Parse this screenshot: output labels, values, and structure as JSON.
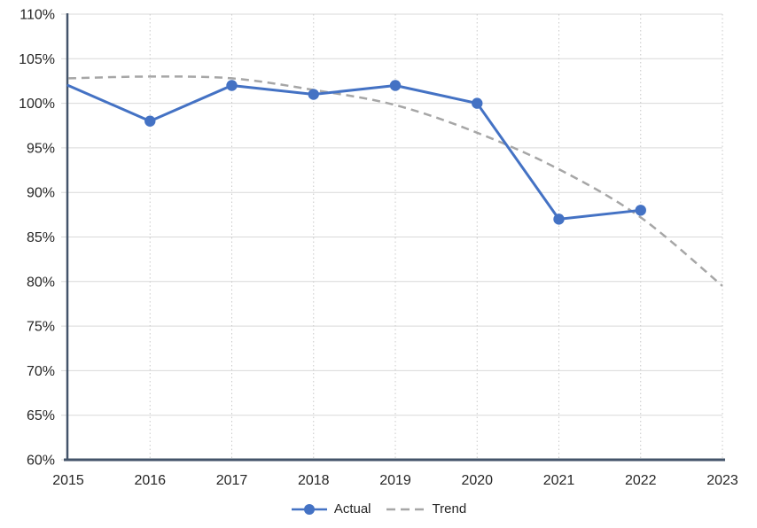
{
  "chart_data": {
    "type": "line",
    "title": "",
    "xlabel": "",
    "ylabel": "",
    "x": [
      2015,
      2016,
      2017,
      2018,
      2019,
      2020,
      2021,
      2022,
      2023
    ],
    "x_labels": [
      "2015",
      "2016",
      "2017",
      "2018",
      "2019",
      "2020",
      "2021",
      "2022",
      "2023"
    ],
    "ylim": [
      60,
      110
    ],
    "y_ticks": [
      {
        "value": 60,
        "label": "60%"
      },
      {
        "value": 65,
        "label": "65%"
      },
      {
        "value": 70,
        "label": "70%"
      },
      {
        "value": 75,
        "label": "75%"
      },
      {
        "value": 80,
        "label": "80%"
      },
      {
        "value": 85,
        "label": "85%"
      },
      {
        "value": 90,
        "label": "90%"
      },
      {
        "value": 95,
        "label": "95%"
      },
      {
        "value": 100,
        "label": "100%"
      },
      {
        "value": 105,
        "label": "105%"
      },
      {
        "value": 110,
        "label": "110%"
      }
    ],
    "grid": {
      "horizontal": "solid",
      "vertical": "dotted"
    },
    "legend_position": "bottom",
    "series": [
      {
        "name": "Actual",
        "color": "#4472C4",
        "line_style": "solid",
        "marker": "circle",
        "values": [
          102,
          98,
          102,
          101,
          102,
          100,
          87,
          88,
          null
        ],
        "marker_visible": [
          false,
          true,
          true,
          true,
          true,
          true,
          true,
          true,
          false
        ]
      },
      {
        "name": "Trend",
        "color": "#A6A6A6",
        "line_style": "dashed",
        "marker": "none",
        "values": [
          102.8,
          103,
          102.8,
          101.5,
          99.8,
          96.7,
          92.6,
          87.2,
          79.5
        ]
      }
    ]
  },
  "colors": {
    "axis": "#44546A",
    "gridline": "#D9D9D9",
    "dotted_gridline": "#C8C8C8",
    "tick": "#D9D9D9",
    "text": "#262626",
    "background": "#FFFFFF"
  }
}
